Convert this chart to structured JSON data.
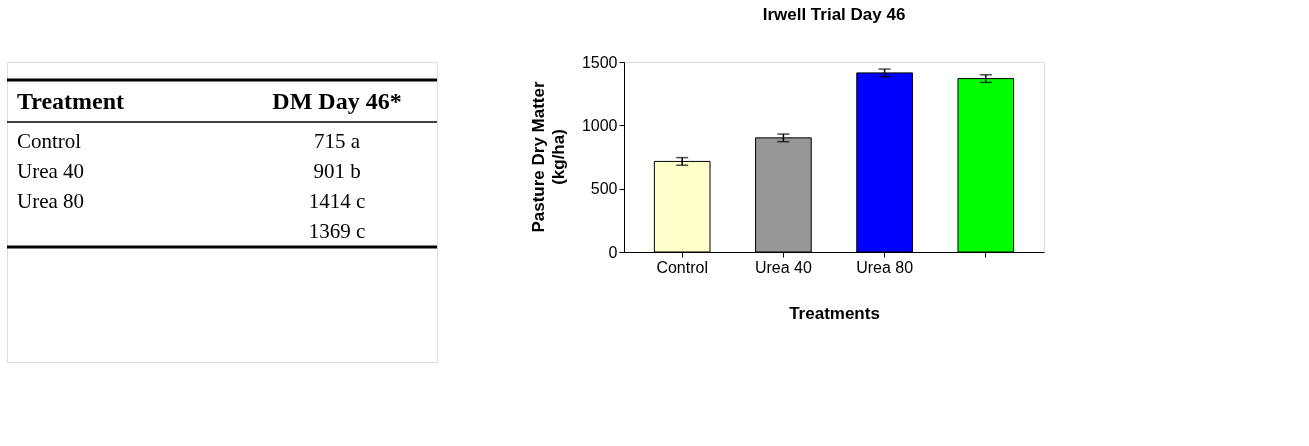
{
  "chart_data": {
    "type": "bar",
    "title": "Irwell Trial Day 46",
    "xlabel": "Treatments",
    "ylabel": "Pasture Dry Matter\n(kg/ha)",
    "categories": [
      "Control",
      "Urea 40",
      "Urea 80",
      null
    ],
    "values": [
      715,
      901,
      1414,
      1369
    ],
    "colors": [
      "#ffffcc",
      "#969696",
      "#0000ff",
      "#00ff00"
    ],
    "errors": [
      30,
      30,
      30,
      30
    ],
    "annotations": [
      "Treatment",
      "DM  Day 46*",
      "Control",
      "715  a",
      "Urea 40",
      "901  b",
      "Urea 80",
      "1414 c",
      "1369 c"
    ],
    "ylim": [
      0,
      1500
    ],
    "yticks": [
      0,
      500,
      1000,
      1500
    ],
    "grid": false
  }
}
